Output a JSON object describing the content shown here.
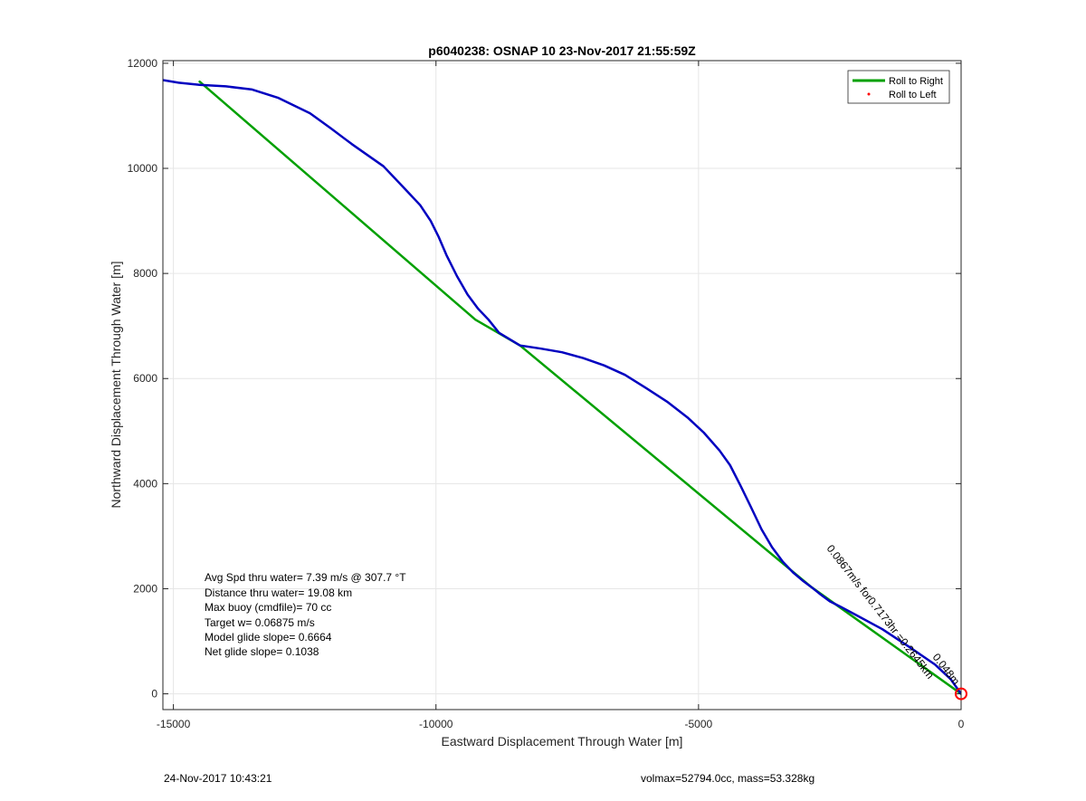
{
  "chart_data": {
    "type": "line",
    "title": "p6040238: OSNAP 10 23-Nov-2017 21:55:59Z",
    "xlabel": "Eastward Displacement Through Water [m]",
    "ylabel": "Northward Displacement Through Water [m]",
    "xlim": [
      -15200,
      0
    ],
    "ylim": [
      -300,
      12050
    ],
    "xticks": [
      -15000,
      -10000,
      -5000,
      0
    ],
    "yticks": [
      0,
      2000,
      4000,
      6000,
      8000,
      10000,
      12000
    ],
    "xtick_labels": [
      "-15000",
      "-10000",
      "-5000",
      "0"
    ],
    "ytick_labels": [
      "0",
      "2000",
      "4000",
      "6000",
      "8000",
      "10000",
      "12000"
    ],
    "grid": true,
    "legend": {
      "placement": "top-right",
      "entries": [
        {
          "label": "Roll to Right",
          "color": "#00a000",
          "marker": "line"
        },
        {
          "label": "Roll to Left",
          "color": "#ff0000",
          "marker": "dot"
        }
      ]
    },
    "series": [
      {
        "name": "Roll to Right",
        "color": "#00a000",
        "x": [
          0,
          -2850,
          -8400,
          -9250,
          -14500
        ],
        "y": [
          0,
          2030,
          6630,
          7120,
          11650
        ]
      },
      {
        "color": "#0000c0",
        "x": [
          -15200,
          -14900,
          -14500,
          -14000,
          -13500,
          -13000,
          -12400,
          -12000,
          -11600,
          -11000,
          -10600,
          -10300,
          -10100,
          -9950,
          -9800,
          -9600,
          -9400,
          -9200,
          -9000,
          -8800,
          -8400,
          -8000,
          -7600,
          -7200,
          -6800,
          -6400,
          -6000,
          -5600,
          -5200,
          -4900,
          -4600,
          -4400,
          -4200,
          -4000,
          -3800,
          -3600,
          -3400,
          -3200,
          -3000,
          -2850,
          -2700,
          -2500,
          -2300,
          -2000,
          -1500,
          -1000,
          -500,
          -200,
          0
        ],
        "y": [
          11680,
          11630,
          11590,
          11560,
          11500,
          11340,
          11050,
          10760,
          10460,
          10040,
          9620,
          9300,
          9000,
          8700,
          8350,
          7950,
          7600,
          7330,
          7120,
          6870,
          6630,
          6570,
          6500,
          6390,
          6250,
          6070,
          5820,
          5560,
          5250,
          4970,
          4630,
          4350,
          3960,
          3550,
          3130,
          2790,
          2520,
          2310,
          2140,
          2030,
          1910,
          1760,
          1660,
          1500,
          1230,
          900,
          560,
          280,
          0
        ]
      }
    ],
    "annotations": {
      "stats": [
        "Avg Spd thru water=  7.39 m/s @ 307.7 °T",
        "Distance thru water= 19.08 km",
        "Max buoy (cmdfile)= 70 cc",
        "Target w= 0.06875 m/s",
        "Model glide slope= 0.6664",
        "Net glide slope= 0.1038"
      ],
      "rotated_label": "0.0867m/s for0.7173hr =0.2645km",
      "overlap_label": "0.048m",
      "endpoint_marker": {
        "x": 0,
        "y": 0,
        "color": "#ff0000"
      }
    }
  },
  "footer": {
    "left": "24-Nov-2017 10:43:21",
    "right": "volmax=52794.0cc, mass=53.328kg"
  }
}
